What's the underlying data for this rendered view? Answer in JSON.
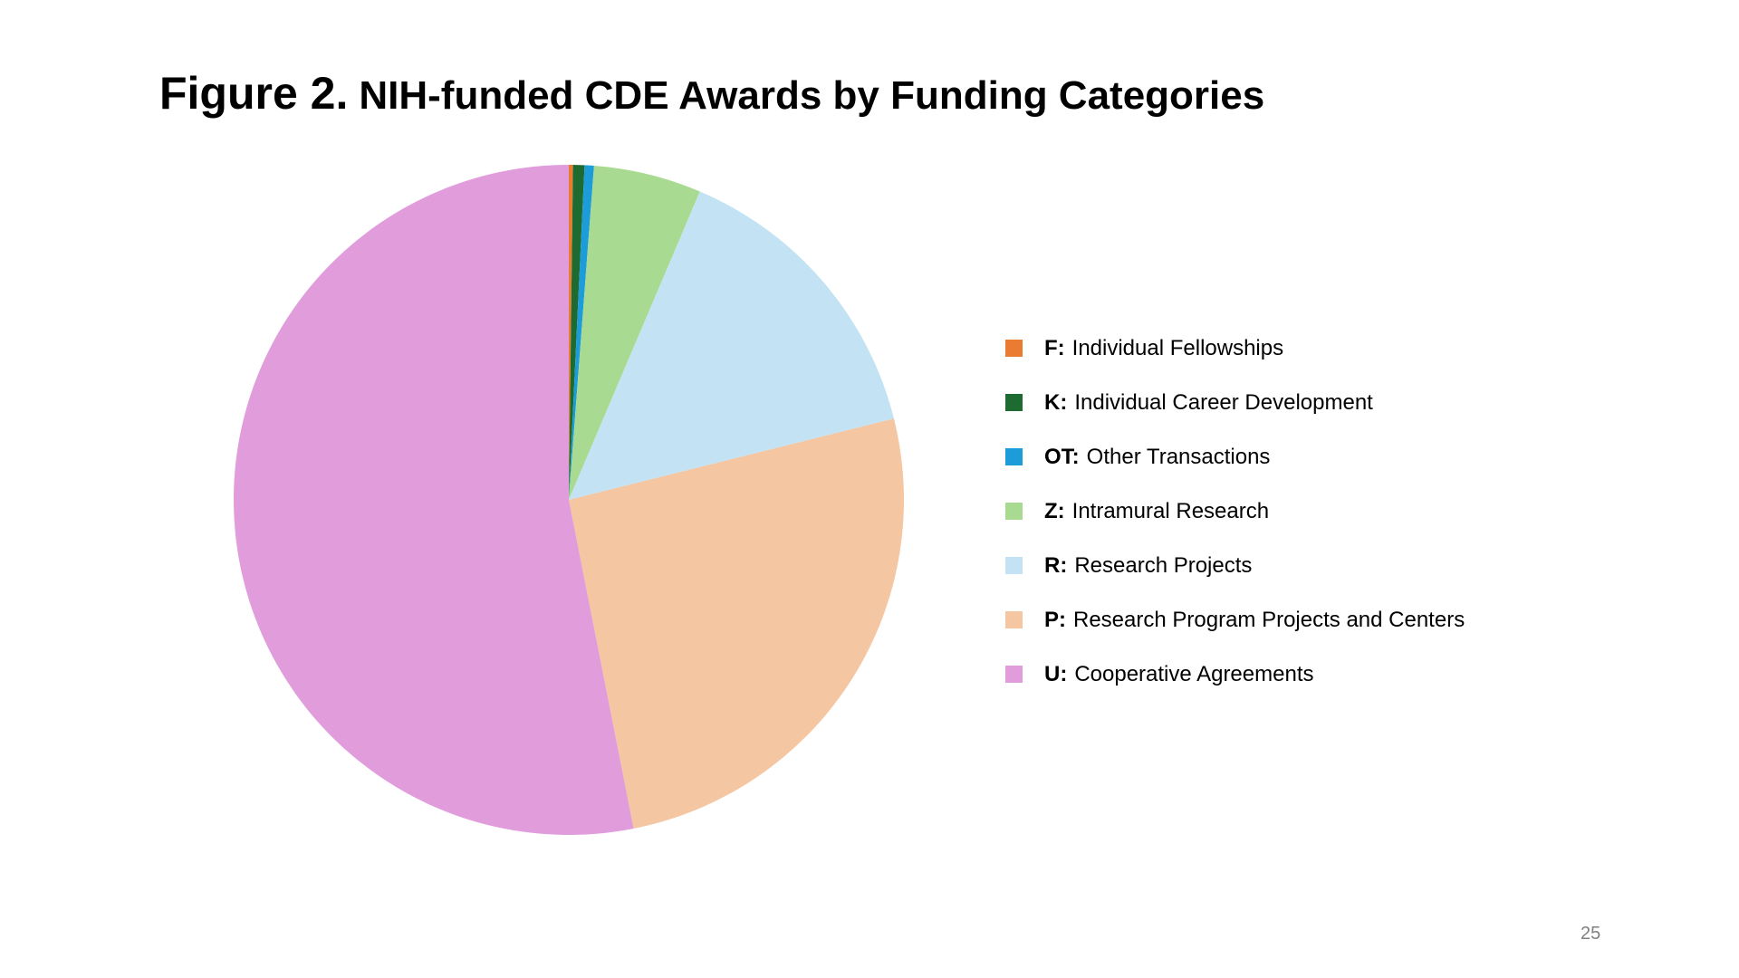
{
  "title": {
    "prefix": "Figure 2.",
    "rest": "NIH-funded CDE Awards by Funding Categories"
  },
  "page_number": "25",
  "legend": {
    "position": "right",
    "items": [
      {
        "key": "F:",
        "label": "Individual Fellowships",
        "color": "#E97C30"
      },
      {
        "key": "K:",
        "label": "Individual Career Development",
        "color": "#1E6B32"
      },
      {
        "key": "OT:",
        "label": "Other Transactions",
        "color": "#1C9CD9"
      },
      {
        "key": "Z:",
        "label": "Intramural Research",
        "color": "#A8DB91"
      },
      {
        "key": "R:",
        "label": "Research Projects",
        "color": "#C3E3F4"
      },
      {
        "key": "P:",
        "label": "Research Program Projects and Centers",
        "color": "#F5C6A2"
      },
      {
        "key": "U:",
        "label": "Cooperative Agreements",
        "color": "#E19CDB"
      }
    ]
  },
  "chart_data": {
    "type": "pie",
    "title": "Figure 2. NIH-funded CDE Awards by Funding Categories",
    "start_angle": "12-o-clock, clockwise",
    "legend_position": "right",
    "series": [
      {
        "name": "F",
        "label": "Individual Fellowships",
        "percent": 0.2,
        "color": "#E97C30"
      },
      {
        "name": "K",
        "label": "Individual Career Development",
        "percent": 0.55,
        "color": "#1E6B32"
      },
      {
        "name": "OT",
        "label": "Other Transactions",
        "percent": 0.45,
        "color": "#1C9CD9"
      },
      {
        "name": "Z",
        "label": "Intramural Research",
        "percent": 5.2,
        "color": "#A8DB91"
      },
      {
        "name": "R",
        "label": "Research Projects",
        "percent": 14.7,
        "color": "#C3E3F4"
      },
      {
        "name": "P",
        "label": "Research Program Projects and Centers",
        "percent": 25.8,
        "color": "#F5C6A2"
      },
      {
        "name": "U",
        "label": "Cooperative Agreements",
        "percent": 53.1,
        "color": "#E19CDB"
      }
    ]
  }
}
